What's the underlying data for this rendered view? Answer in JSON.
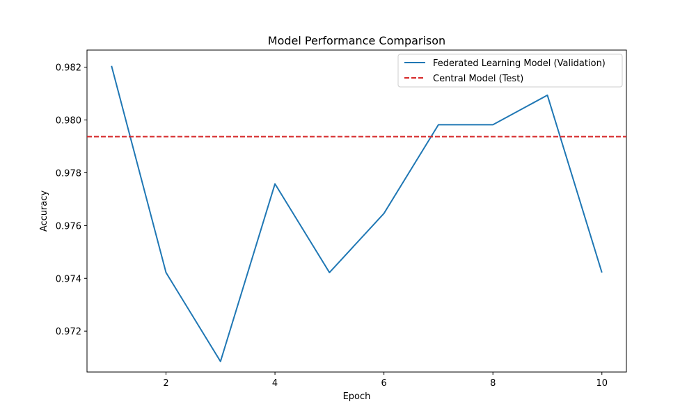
{
  "chart_data": {
    "type": "line",
    "title": "Model Performance Comparison",
    "xlabel": "Epoch",
    "ylabel": "Accuracy",
    "xlim": [
      0.55,
      10.45
    ],
    "ylim": [
      0.97045,
      0.98265
    ],
    "xticks": [
      2,
      4,
      6,
      8,
      10
    ],
    "yticks": [
      0.972,
      0.974,
      0.976,
      0.978,
      0.98,
      0.982
    ],
    "ytick_labels": [
      "0.972",
      "0.974",
      "0.976",
      "0.978",
      "0.980",
      "0.982"
    ],
    "grid": false,
    "legend": "top-right",
    "series": [
      {
        "name": "Federated Learning Model (Validation)",
        "style": "solid",
        "color": "#1f77b4",
        "x": [
          1,
          2,
          3,
          4,
          5,
          6,
          7,
          8,
          9,
          10
        ],
        "y": [
          0.98205,
          0.97422,
          0.97085,
          0.97758,
          0.97422,
          0.97646,
          0.97982,
          0.97982,
          0.98094,
          0.97422
        ]
      },
      {
        "name": "Central Model (Test)",
        "style": "dashed",
        "color": "#d62728",
        "type": "hline",
        "y": 0.97937
      }
    ]
  }
}
